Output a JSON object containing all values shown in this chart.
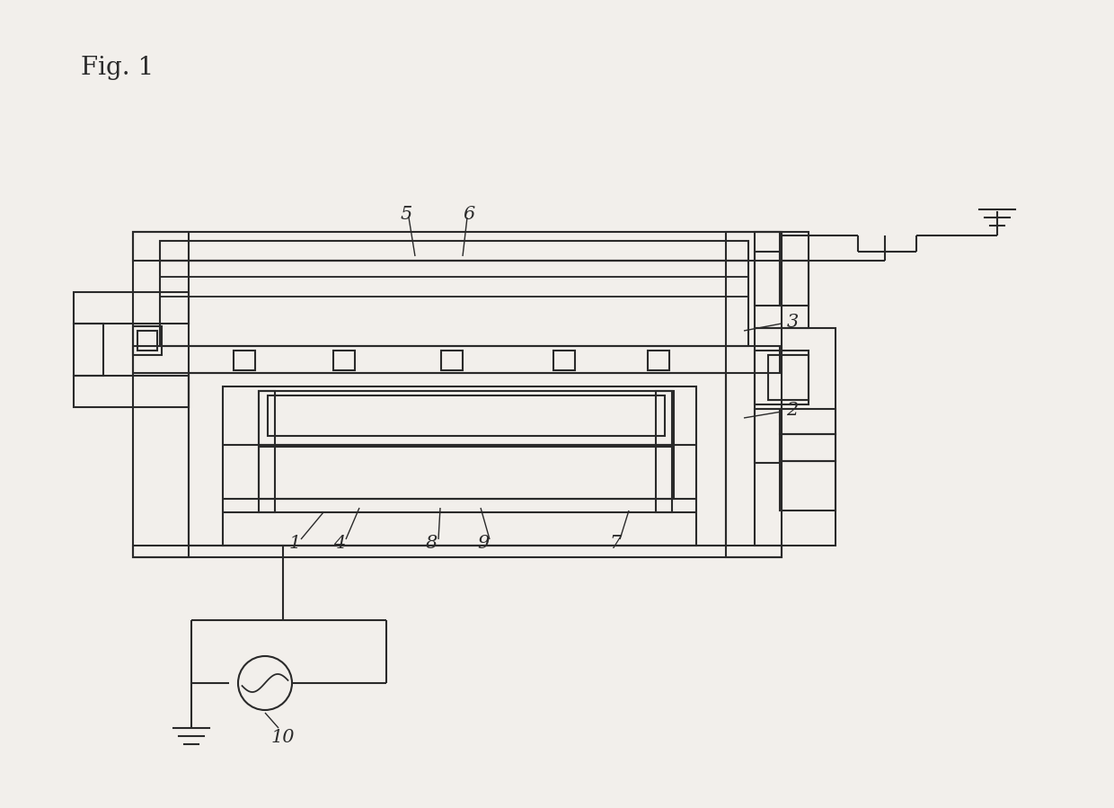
{
  "title": "Fig. 1",
  "bg_color": "#f2efeb",
  "line_color": "#2a2a2a",
  "lw": 1.5,
  "fig_label_fontsize": 20,
  "label_fontsize": 15,
  "annotation_lw": 1.0
}
